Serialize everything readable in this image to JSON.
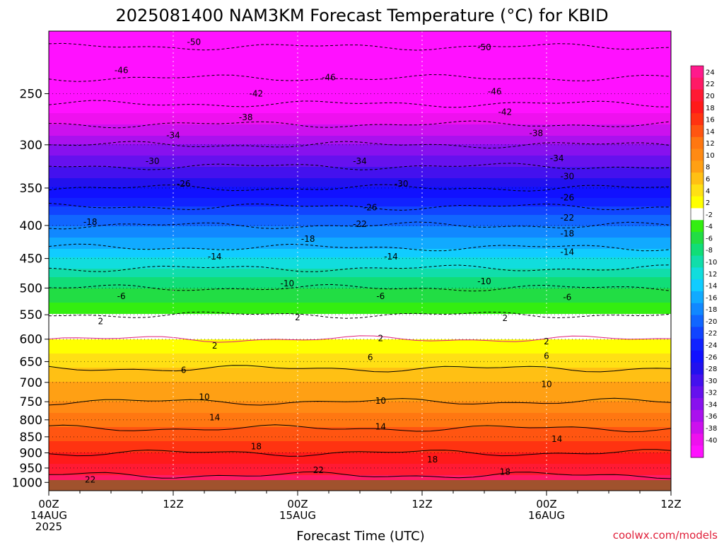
{
  "title": "2025081400 NAM3KM Forecast Temperature (°C) for KBID",
  "credit": "coolwx.com/models",
  "chart_data": {
    "type": "heatmap",
    "title": "2025081400 NAM3KM Forecast Temperature (°C) for KBID",
    "xlabel": "Forecast Time (UTC)",
    "ylabel": "",
    "x_ticks": [
      {
        "hour": 0,
        "lines": [
          "00Z",
          "14AUG",
          "2025"
        ]
      },
      {
        "hour": 12,
        "lines": [
          "12Z"
        ]
      },
      {
        "hour": 24,
        "lines": [
          "00Z",
          "15AUG"
        ]
      },
      {
        "hour": 36,
        "lines": [
          "12Z"
        ]
      },
      {
        "hour": 48,
        "lines": [
          "00Z",
          "16AUG"
        ]
      },
      {
        "hour": 60,
        "lines": [
          "12Z"
        ]
      }
    ],
    "xlim": [
      0,
      60
    ],
    "y_axis": "pressure (hPa), log scale, inverted",
    "ylim": [
      1030,
      200
    ],
    "y_ticks": [
      1000,
      950,
      900,
      850,
      800,
      750,
      700,
      650,
      600,
      550,
      500,
      450,
      400,
      350,
      300,
      250
    ],
    "colorbar": {
      "labels": [
        24,
        22,
        20,
        18,
        16,
        14,
        12,
        10,
        8,
        6,
        4,
        2,
        -2,
        -4,
        -6,
        -8,
        -10,
        -12,
        -14,
        -16,
        -18,
        -20,
        -22,
        -24,
        -26,
        -28,
        -30,
        -32,
        -34,
        -36,
        -38,
        -40
      ],
      "colors": [
        "#ff1a8c",
        "#ff1a66",
        "#ff1a33",
        "#ff1a1a",
        "#ff3311",
        "#ff5511",
        "#ff7711",
        "#ff8a14",
        "#ffa014",
        "#ffc014",
        "#ffe014",
        "#ffff00",
        "#ffffff",
        "#33ee11",
        "#22dd44",
        "#11dd77",
        "#11ddaa",
        "#11dddd",
        "#11ccff",
        "#11aaff",
        "#1188ff",
        "#1166ff",
        "#1144ff",
        "#1122ff",
        "#1111ff",
        "#2211ee",
        "#4411ee",
        "#6611ee",
        "#8811ee",
        "#aa11ee",
        "#cc11ee",
        "#ee11ee",
        "#ff11ff"
      ]
    },
    "contour_levels": [
      -50,
      -46,
      -42,
      -38,
      -34,
      -30,
      -26,
      -22,
      -18,
      -14,
      -10,
      -6,
      -2,
      2,
      6,
      10,
      14,
      18,
      22
    ],
    "profile": {
      "pressure_hpa": [
        1030,
        1000,
        950,
        900,
        850,
        800,
        750,
        700,
        650,
        600,
        575,
        550,
        500,
        450,
        400,
        350,
        300,
        250,
        200
      ],
      "temperature_c": [
        25,
        23,
        21,
        18,
        15,
        13,
        10,
        8,
        5,
        2,
        0,
        -2,
        -6,
        -12,
        -18,
        -26,
        -34,
        -44,
        -52
      ]
    },
    "contour_labels": [
      {
        "hour": 14,
        "p": 208,
        "text": "-50"
      },
      {
        "hour": 42,
        "p": 212,
        "text": "-50"
      },
      {
        "hour": 7,
        "p": 230,
        "text": "-46"
      },
      {
        "hour": 27,
        "p": 236,
        "text": "-46"
      },
      {
        "hour": 43,
        "p": 248,
        "text": "-46"
      },
      {
        "hour": 20,
        "p": 250,
        "text": "-42"
      },
      {
        "hour": 44,
        "p": 267,
        "text": "-42"
      },
      {
        "hour": 19,
        "p": 272,
        "text": "-38"
      },
      {
        "hour": 47,
        "p": 288,
        "text": "-38"
      },
      {
        "hour": 12,
        "p": 290,
        "text": "-34"
      },
      {
        "hour": 30,
        "p": 318,
        "text": "-34"
      },
      {
        "hour": 49,
        "p": 315,
        "text": "-34"
      },
      {
        "hour": 10,
        "p": 318,
        "text": "-30"
      },
      {
        "hour": 34,
        "p": 345,
        "text": "-30"
      },
      {
        "hour": 50,
        "p": 336,
        "text": "-30"
      },
      {
        "hour": 13,
        "p": 345,
        "text": "-26"
      },
      {
        "hour": 31,
        "p": 375,
        "text": "-26"
      },
      {
        "hour": 50,
        "p": 362,
        "text": "-26"
      },
      {
        "hour": 4,
        "p": 395,
        "text": "-18"
      },
      {
        "hour": 30,
        "p": 398,
        "text": "-22"
      },
      {
        "hour": 50,
        "p": 389,
        "text": "-22"
      },
      {
        "hour": 25,
        "p": 420,
        "text": "-18"
      },
      {
        "hour": 50,
        "p": 412,
        "text": "-18"
      },
      {
        "hour": 16,
        "p": 447,
        "text": "-14"
      },
      {
        "hour": 33,
        "p": 447,
        "text": "-14"
      },
      {
        "hour": 50,
        "p": 440,
        "text": "-14"
      },
      {
        "hour": 23,
        "p": 492,
        "text": "-10"
      },
      {
        "hour": 42,
        "p": 488,
        "text": "-10"
      },
      {
        "hour": 7,
        "p": 515,
        "text": "-6"
      },
      {
        "hour": 32,
        "p": 515,
        "text": "-6"
      },
      {
        "hour": 50,
        "p": 517,
        "text": "-6"
      },
      {
        "hour": 5,
        "p": 563,
        "text": "2"
      },
      {
        "hour": 24,
        "p": 555,
        "text": "2"
      },
      {
        "hour": 44,
        "p": 557,
        "text": "2"
      },
      {
        "hour": 16,
        "p": 614,
        "text": "2"
      },
      {
        "hour": 32,
        "p": 598,
        "text": "2"
      },
      {
        "hour": 48,
        "p": 605,
        "text": "2"
      },
      {
        "hour": 13,
        "p": 670,
        "text": "6"
      },
      {
        "hour": 31,
        "p": 640,
        "text": "6"
      },
      {
        "hour": 48,
        "p": 637,
        "text": "6"
      },
      {
        "hour": 15,
        "p": 737,
        "text": "10"
      },
      {
        "hour": 32,
        "p": 748,
        "text": "10"
      },
      {
        "hour": 48,
        "p": 705,
        "text": "10"
      },
      {
        "hour": 16,
        "p": 793,
        "text": "14"
      },
      {
        "hour": 32,
        "p": 820,
        "text": "14"
      },
      {
        "hour": 49,
        "p": 857,
        "text": "14"
      },
      {
        "hour": 20,
        "p": 880,
        "text": "18"
      },
      {
        "hour": 37,
        "p": 922,
        "text": "18"
      },
      {
        "hour": 44,
        "p": 963,
        "text": "18"
      },
      {
        "hour": 26,
        "p": 957,
        "text": "22"
      },
      {
        "hour": 4,
        "p": 990,
        "text": "22"
      }
    ]
  }
}
